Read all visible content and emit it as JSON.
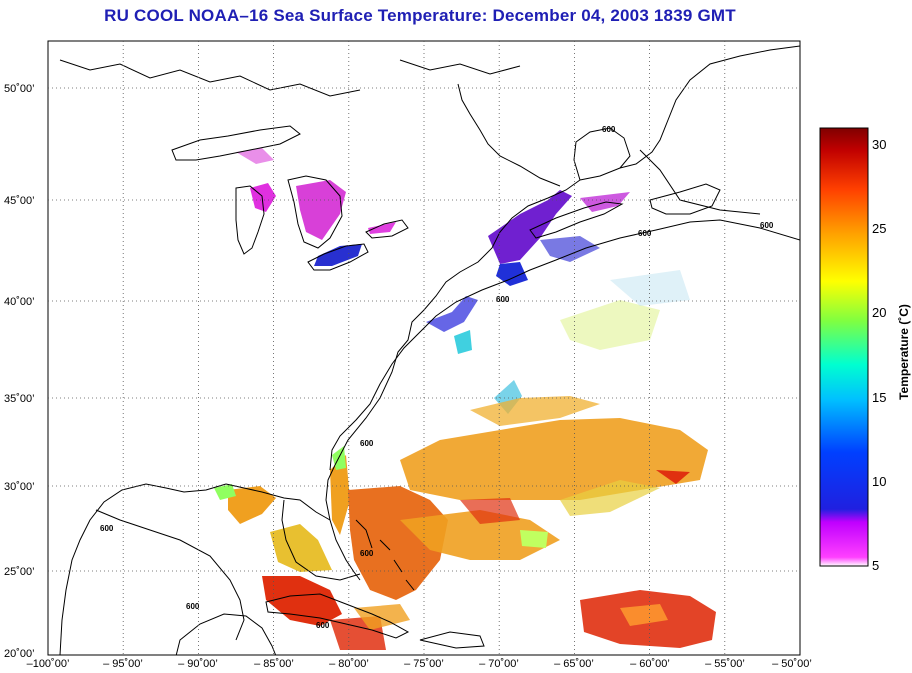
{
  "title": "RU COOL  NOAA–16  Sea Surface Temperature:  December 04, 2003 1839 GMT",
  "map": {
    "lon_range": [
      -100,
      -50
    ],
    "lat_range": [
      20,
      52
    ],
    "lon_ticks": [
      "–100˚00’",
      "– 95˚00’",
      "– 90˚00’",
      "– 85˚00’",
      "– 80˚00’",
      "– 75˚00’",
      "– 70˚00’",
      "– 65˚00’",
      "– 60˚00’",
      "– 55˚00’",
      "– 50˚00’"
    ],
    "lat_ticks": [
      "20˚00’",
      "25˚00’",
      "30˚00’",
      "35˚00’",
      "40˚00’",
      "45˚00’",
      "50˚00’"
    ],
    "contour_label": "600",
    "grid": "dotted"
  },
  "colorbar": {
    "label": "Temperature (˚C)",
    "min": 5,
    "max": 31,
    "ticks": [
      "5",
      "10",
      "15",
      "20",
      "25",
      "30"
    ],
    "colors": [
      "#ff40ff",
      "#c000ff",
      "#2020e0",
      "#0040ff",
      "#00c0ff",
      "#00ffd0",
      "#80ff40",
      "#ffff00",
      "#ffa000",
      "#ff4000",
      "#c00000",
      "#800000"
    ]
  },
  "sst_colors": {
    "cold": "#e030e0",
    "cool": "#2020d0",
    "cyan": "#40d0e0",
    "green": "#90ff60",
    "yellow": "#e8e030",
    "orange": "#f0a020",
    "dark_orange": "#e87020",
    "red": "#e03010"
  }
}
